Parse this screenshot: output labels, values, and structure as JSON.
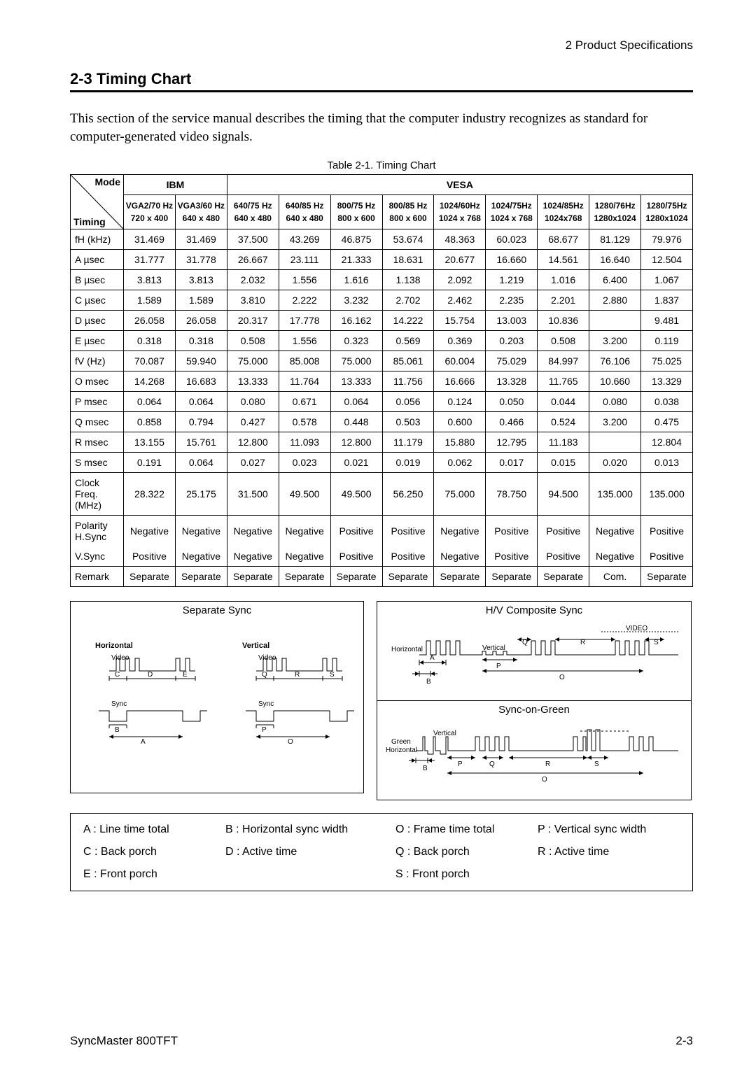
{
  "header_right": "2 Product Specifications",
  "section_heading": "2-3 Timing Chart",
  "intro": "This section of the service manual describes the timing that the computer industry recognizes as standard for computer-generated video signals.",
  "table_caption": "Table 2-1. Timing Chart",
  "table": {
    "corner_mode": "Mode",
    "corner_timing": "Timing",
    "group_headers": [
      "IBM",
      "VESA"
    ],
    "group_spans": [
      2,
      9
    ],
    "col_modes": [
      {
        "l1": "VGA2/70 Hz",
        "l2": "720 x 400"
      },
      {
        "l1": "VGA3/60 Hz",
        "l2": "640 x 480"
      },
      {
        "l1": "640/75 Hz",
        "l2": "640 x 480"
      },
      {
        "l1": "640/85 Hz",
        "l2": "640 x 480"
      },
      {
        "l1": "800/75 Hz",
        "l2": "800 x 600"
      },
      {
        "l1": "800/85 Hz",
        "l2": "800 x 600"
      },
      {
        "l1": "1024/60Hz",
        "l2": "1024 x 768"
      },
      {
        "l1": "1024/75Hz",
        "l2": "1024 x 768"
      },
      {
        "l1": "1024/85Hz",
        "l2": "1024x768"
      },
      {
        "l1": "1280/76Hz",
        "l2": "1280x1024"
      },
      {
        "l1": "1280/75Hz",
        "l2": "1280x1024"
      }
    ],
    "rows": [
      {
        "label": "fH (kHz)",
        "v": [
          "31.469",
          "31.469",
          "37.500",
          "43.269",
          "46.875",
          "53.674",
          "48.363",
          "60.023",
          "68.677",
          "81.129",
          "79.976"
        ]
      },
      {
        "label": "A µsec",
        "v": [
          "31.777",
          "31.778",
          "26.667",
          "23.111",
          "21.333",
          "18.631",
          "20.677",
          "16.660",
          "14.561",
          "16.640",
          "12.504"
        ]
      },
      {
        "label": "B µsec",
        "v": [
          "3.813",
          "3.813",
          "2.032",
          "1.556",
          "1.616",
          "1.138",
          "2.092",
          "1.219",
          "1.016",
          "6.400",
          "1.067"
        ]
      },
      {
        "label": "C µsec",
        "v": [
          "1.589",
          "1.589",
          "3.810",
          "2.222",
          "3.232",
          "2.702",
          "2.462",
          "2.235",
          "2.201",
          "2.880",
          "1.837"
        ]
      },
      {
        "label": "D µsec",
        "v": [
          "26.058",
          "26.058",
          "20.317",
          "17.778",
          "16.162",
          "14.222",
          "15.754",
          "13.003",
          "10.836",
          "",
          "9.481"
        ]
      },
      {
        "label": "E µsec",
        "v": [
          "0.318",
          "0.318",
          "0.508",
          "1.556",
          "0.323",
          "0.569",
          "0.369",
          "0.203",
          "0.508",
          "3.200",
          "0.119"
        ]
      },
      {
        "label": "fV (Hz)",
        "v": [
          "70.087",
          "59.940",
          "75.000",
          "85.008",
          "75.000",
          "85.061",
          "60.004",
          "75.029",
          "84.997",
          "76.106",
          "75.025"
        ]
      },
      {
        "label": "O msec",
        "v": [
          "14.268",
          "16.683",
          "13.333",
          "11.764",
          "13.333",
          "11.756",
          "16.666",
          "13.328",
          "11.765",
          "10.660",
          "13.329"
        ]
      },
      {
        "label": "P msec",
        "v": [
          "0.064",
          "0.064",
          "0.080",
          "0.671",
          "0.064",
          "0.056",
          "0.124",
          "0.050",
          "0.044",
          "0.080",
          "0.038"
        ]
      },
      {
        "label": "Q msec",
        "v": [
          "0.858",
          "0.794",
          "0.427",
          "0.578",
          "0.448",
          "0.503",
          "0.600",
          "0.466",
          "0.524",
          "3.200",
          "0.475"
        ]
      },
      {
        "label": "R msec",
        "v": [
          "13.155",
          "15.761",
          "12.800",
          "11.093",
          "12.800",
          "11.179",
          "15.880",
          "12.795",
          "11.183",
          "",
          "12.804"
        ]
      },
      {
        "label": "S msec",
        "v": [
          "0.191",
          "0.064",
          "0.027",
          "0.023",
          "0.021",
          "0.019",
          "0.062",
          "0.017",
          "0.015",
          "0.020",
          "0.013"
        ]
      },
      {
        "label": "Clock\nFreq.\n(MHz)",
        "v": [
          "28.322",
          "25.175",
          "31.500",
          "49.500",
          "49.500",
          "56.250",
          "75.000",
          "78.750",
          "94.500",
          "135.000",
          "135.000"
        ]
      },
      {
        "label": "Polarity\nH.Sync",
        "v": [
          "Negative",
          "Negative",
          "Negative",
          "Negative",
          "Positive",
          "Positive",
          "Negative",
          "Positive",
          "Positive",
          "Negative",
          "Positive"
        ]
      },
      {
        "label": "V.Sync",
        "v": [
          "Positive",
          "Negative",
          "Negative",
          "Negative",
          "Positive",
          "Positive",
          "Negative",
          "Positive",
          "Positive",
          "Negative",
          "Positive"
        ]
      },
      {
        "label": "Remark",
        "v": [
          "Separate",
          "Separate",
          "Separate",
          "Separate",
          "Separate",
          "Separate",
          "Separate",
          "Separate",
          "Separate",
          "Com.",
          "Separate"
        ]
      }
    ]
  },
  "diag_left_title": "Separate Sync",
  "diag_left_labels": {
    "horizontal": "Horizontal",
    "vertical": "Vertical",
    "video": "Video",
    "sync": "Sync",
    "A": "A",
    "B": "B",
    "C": "C",
    "D": "D",
    "E": "E",
    "O": "O",
    "P": "P",
    "Q": "Q",
    "R": "R",
    "S": "S"
  },
  "diag_right_top_title": "H/V Composite Sync",
  "diag_right_bottom_title": "Sync-on-Green",
  "diag_right_labels": {
    "video": "VIDEO",
    "horizontal": "Horizontal",
    "vertical": "Vertical",
    "green": "Green",
    "A": "A",
    "B": "B",
    "O": "O",
    "P": "P",
    "Q": "Q",
    "R": "R",
    "S": "S"
  },
  "legend": {
    "left": [
      [
        {
          "k": "A : Line time total"
        },
        {
          "k": "B : Horizontal sync width"
        }
      ],
      [
        {
          "k": "C : Back porch"
        },
        {
          "k": "D : Active time"
        }
      ],
      [
        {
          "k": "E : Front porch"
        },
        {
          "k": ""
        }
      ]
    ],
    "right": [
      [
        {
          "k": "O : Frame time total"
        },
        {
          "k": "P : Vertical sync width"
        }
      ],
      [
        {
          "k": "Q : Back porch"
        },
        {
          "k": "R : Active time"
        }
      ],
      [
        {
          "k": "S : Front porch"
        },
        {
          "k": ""
        }
      ]
    ]
  },
  "footer_left": "SyncMaster 800TFT",
  "footer_right": "2-3"
}
